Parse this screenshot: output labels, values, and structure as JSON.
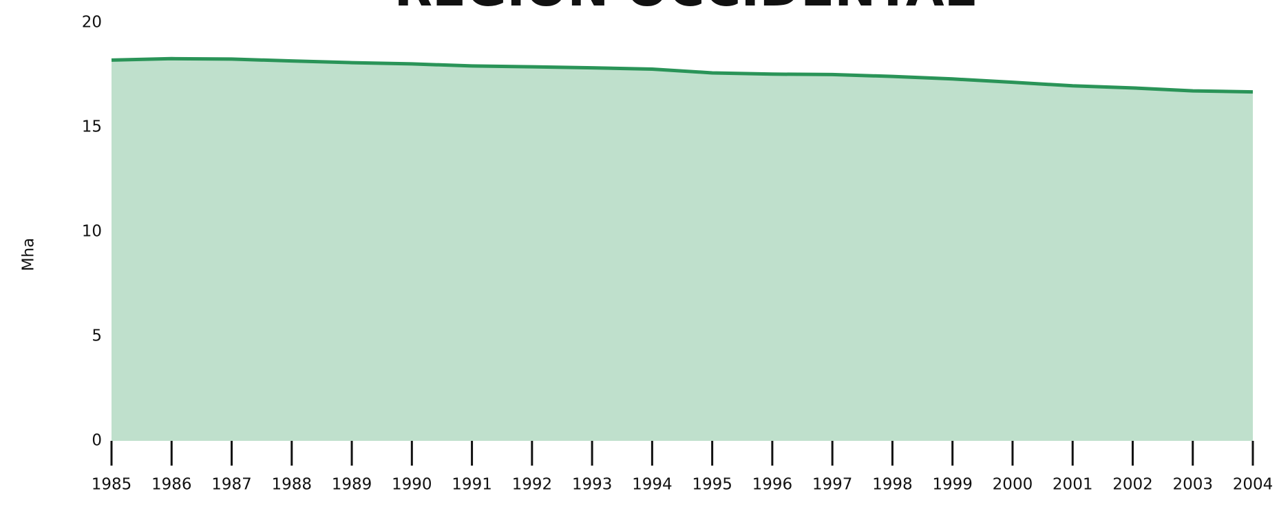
{
  "chart_data": {
    "type": "area",
    "title": "REGION OCCIDENTAL",
    "y_label": "Mha",
    "x": [
      1985,
      1986,
      1987,
      1988,
      1989,
      1990,
      1991,
      1992,
      1993,
      1994,
      1995,
      1996,
      1997,
      1998,
      1999,
      2000,
      2001,
      2002,
      2003,
      2004
    ],
    "series": [
      {
        "name": "Mha",
        "color": "#2a9458",
        "fill": "#bfe0cc",
        "values": [
          18.21,
          18.28,
          18.26,
          18.17,
          18.09,
          18.03,
          17.93,
          17.89,
          17.84,
          17.78,
          17.6,
          17.54,
          17.52,
          17.43,
          17.31,
          17.15,
          16.98,
          16.88,
          16.74,
          16.69
        ]
      }
    ],
    "xlim": [
      1985,
      2004
    ],
    "xticks": [
      1985,
      1986,
      1987,
      1988,
      1989,
      1990,
      1991,
      1992,
      1993,
      1994,
      1995,
      1996,
      1997,
      1998,
      1999,
      2000,
      2001,
      2002,
      2003,
      2004
    ],
    "ylim": [
      0,
      20
    ],
    "yticks": [
      0,
      5,
      10,
      15,
      20
    ],
    "grid": false
  }
}
